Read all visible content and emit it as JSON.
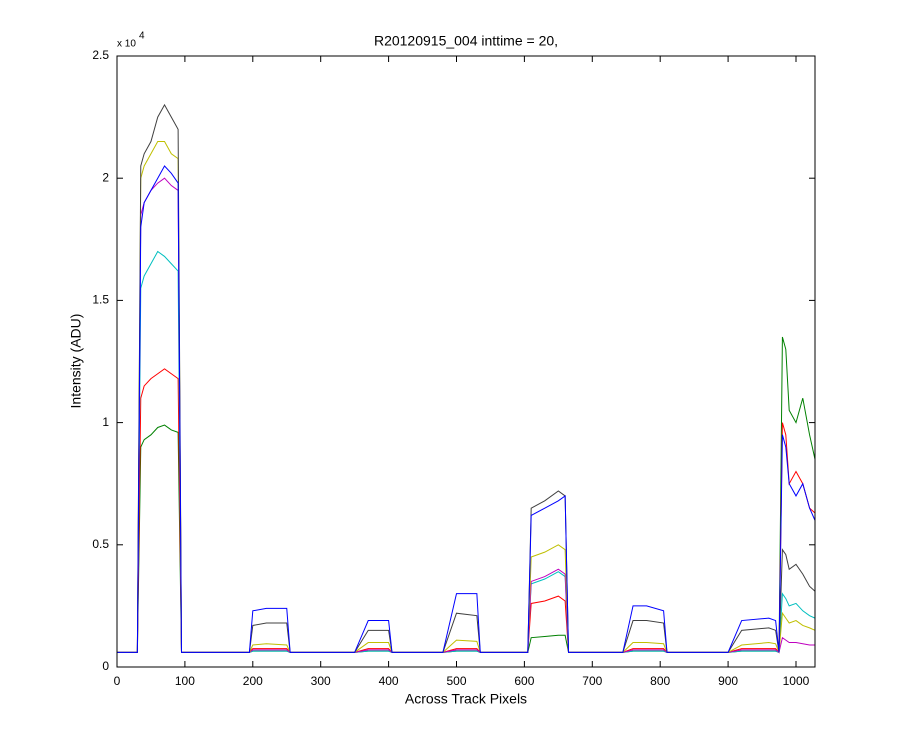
{
  "chart_data": {
    "type": "line",
    "title": "R20120915_004 inttime = 20,",
    "x_label": "Across Track Pixels",
    "y_label": "Intensity (ADU)",
    "y_multiplier": "x 10",
    "y_exponent": "4",
    "xlim": [
      0,
      1028
    ],
    "ylim": [
      0,
      25000
    ],
    "xticks": [
      0,
      100,
      200,
      300,
      400,
      500,
      600,
      700,
      800,
      900,
      1000
    ],
    "yticks": [
      {
        "value": 0,
        "label": "0"
      },
      {
        "value": 5000,
        "label": "0.5"
      },
      {
        "value": 10000,
        "label": "1"
      },
      {
        "value": 15000,
        "label": "1.5"
      },
      {
        "value": 20000,
        "label": "2"
      },
      {
        "value": 25000,
        "label": "2.5"
      }
    ],
    "grid": false,
    "x": [
      0,
      30,
      35,
      40,
      50,
      60,
      70,
      80,
      90,
      95,
      100,
      190,
      195,
      200,
      220,
      250,
      255,
      260,
      345,
      350,
      370,
      400,
      405,
      410,
      475,
      480,
      500,
      530,
      535,
      540,
      600,
      605,
      610,
      630,
      650,
      660,
      665,
      670,
      740,
      745,
      760,
      780,
      805,
      810,
      815,
      895,
      900,
      920,
      960,
      970,
      975,
      980,
      985,
      990,
      1000,
      1010,
      1020,
      1028
    ],
    "series": [
      {
        "color": "#008000",
        "values": [
          600,
          600,
          9000,
          9300,
          9500,
          9800,
          9900,
          9700,
          9600,
          600,
          600,
          600,
          600,
          650,
          650,
          650,
          600,
          600,
          600,
          600,
          650,
          650,
          600,
          600,
          600,
          600,
          650,
          650,
          600,
          600,
          600,
          600,
          1200,
          1250,
          1300,
          1300,
          600,
          600,
          600,
          600,
          650,
          650,
          650,
          600,
          600,
          600,
          600,
          650,
          650,
          650,
          600,
          13500,
          13000,
          10500,
          10000,
          11000,
          9500,
          8500
        ]
      },
      {
        "color": "#ff0000",
        "values": [
          600,
          600,
          11000,
          11500,
          11800,
          12000,
          12200,
          12000,
          11800,
          600,
          600,
          600,
          600,
          750,
          750,
          750,
          600,
          600,
          600,
          600,
          750,
          750,
          600,
          600,
          600,
          600,
          750,
          750,
          600,
          600,
          600,
          600,
          2600,
          2700,
          2900,
          2700,
          600,
          600,
          600,
          600,
          750,
          750,
          750,
          600,
          600,
          600,
          600,
          750,
          750,
          750,
          600,
          10000,
          9500,
          7500,
          8000,
          7500,
          6500,
          6300
        ]
      },
      {
        "color": "#00bfbf",
        "values": [
          600,
          600,
          15500,
          16000,
          16500,
          17000,
          16800,
          16500,
          16200,
          600,
          600,
          600,
          600,
          650,
          650,
          650,
          600,
          600,
          600,
          600,
          650,
          650,
          600,
          600,
          600,
          600,
          650,
          650,
          600,
          600,
          600,
          600,
          3400,
          3600,
          3900,
          3700,
          600,
          600,
          600,
          600,
          650,
          650,
          650,
          600,
          600,
          600,
          600,
          650,
          650,
          650,
          600,
          3000,
          2800,
          2500,
          2600,
          2300,
          2100,
          2000
        ]
      },
      {
        "color": "#bf00bf",
        "values": [
          600,
          600,
          18500,
          19000,
          19500,
          19800,
          20000,
          19700,
          19500,
          600,
          600,
          600,
          600,
          700,
          700,
          700,
          600,
          600,
          600,
          600,
          700,
          700,
          600,
          600,
          600,
          600,
          700,
          700,
          600,
          600,
          600,
          600,
          3500,
          3700,
          4000,
          3800,
          600,
          600,
          600,
          600,
          700,
          700,
          700,
          600,
          600,
          600,
          600,
          700,
          700,
          700,
          600,
          1200,
          1100,
          1000,
          1000,
          950,
          900,
          900
        ]
      },
      {
        "color": "#bfbf00",
        "values": [
          600,
          600,
          20000,
          20500,
          21000,
          21500,
          21500,
          21000,
          20800,
          600,
          600,
          600,
          600,
          900,
          950,
          900,
          600,
          600,
          600,
          600,
          1000,
          1000,
          600,
          600,
          600,
          600,
          1100,
          1050,
          600,
          600,
          600,
          600,
          4500,
          4700,
          5000,
          4800,
          600,
          600,
          600,
          600,
          1000,
          1000,
          950,
          600,
          600,
          600,
          600,
          900,
          1000,
          950,
          600,
          2200,
          2000,
          1800,
          1900,
          1700,
          1600,
          1500
        ]
      },
      {
        "color": "#404040",
        "values": [
          600,
          600,
          20500,
          21000,
          21500,
          22500,
          23000,
          22500,
          22000,
          600,
          600,
          600,
          600,
          1700,
          1800,
          1800,
          600,
          600,
          600,
          600,
          1500,
          1500,
          600,
          600,
          600,
          600,
          2200,
          2100,
          600,
          600,
          600,
          600,
          6500,
          6800,
          7200,
          7000,
          600,
          600,
          600,
          600,
          1900,
          1900,
          1800,
          600,
          600,
          600,
          600,
          1500,
          1600,
          1500,
          600,
          4800,
          4600,
          4000,
          4200,
          3800,
          3300,
          3100
        ]
      },
      {
        "color": "#0000ff",
        "values": [
          600,
          600,
          18000,
          19000,
          19500,
          20000,
          20500,
          20200,
          19800,
          600,
          600,
          600,
          600,
          2300,
          2400,
          2400,
          600,
          600,
          600,
          600,
          1900,
          1900,
          600,
          600,
          600,
          600,
          3000,
          3000,
          600,
          600,
          600,
          600,
          6200,
          6500,
          6800,
          7000,
          600,
          600,
          600,
          600,
          2500,
          2500,
          2300,
          600,
          600,
          600,
          600,
          1900,
          2000,
          1900,
          600,
          9500,
          9000,
          7500,
          7000,
          7500,
          6500,
          6000
        ]
      }
    ]
  }
}
